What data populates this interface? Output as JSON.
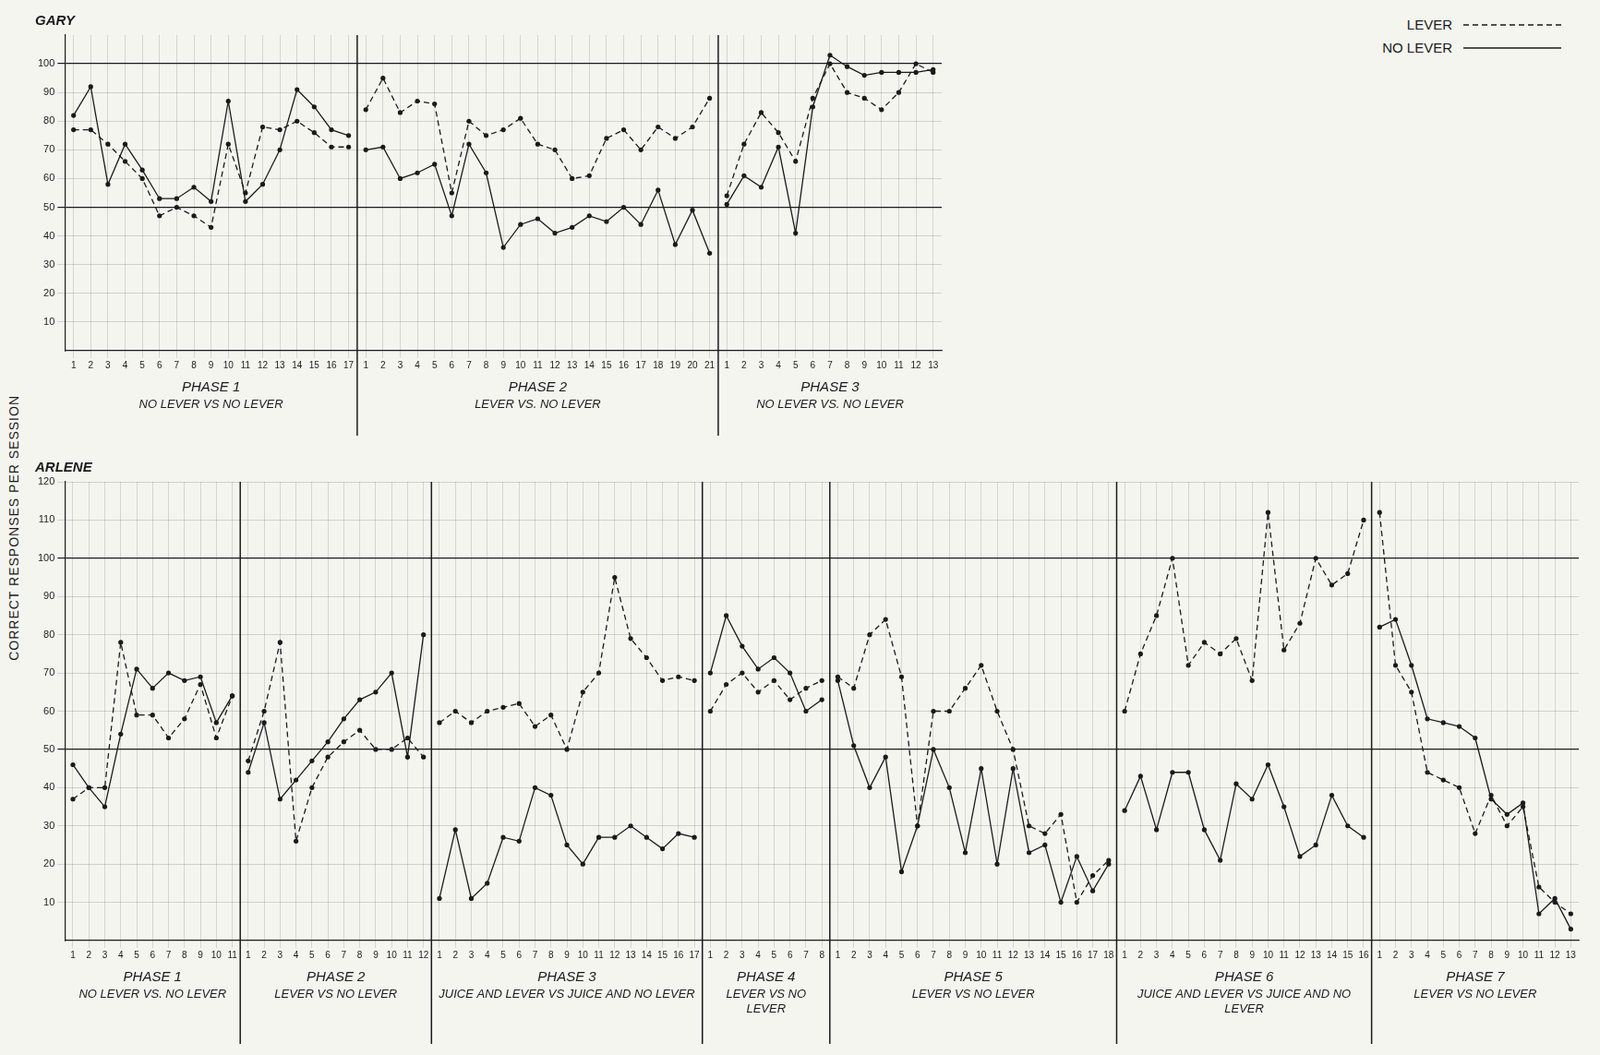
{
  "y_label": "CORRECT RESPONSES PER SESSION",
  "chart_data": [
    {
      "type": "line",
      "title": "GARY",
      "grid": true,
      "legend": "upper right",
      "ylim": [
        0,
        110
      ],
      "yticks": [
        10,
        20,
        30,
        40,
        50,
        60,
        70,
        80,
        90,
        100
      ],
      "categories": [
        1,
        2,
        3,
        4,
        5,
        6,
        7,
        8,
        9,
        10,
        11,
        12,
        13,
        14,
        15,
        16,
        17,
        1,
        2,
        3,
        4,
        5,
        6,
        7,
        8,
        9,
        10,
        11,
        12,
        13,
        14,
        15,
        16,
        17,
        18,
        19,
        20,
        21,
        1,
        2,
        3,
        4,
        5,
        6,
        7,
        8,
        9,
        10,
        11,
        12,
        13
      ],
      "phases": [
        {
          "name": "PHASE 1",
          "condition": "NO LEVER VS NO LEVER"
        },
        {
          "name": "PHASE 2",
          "condition": "LEVER VS. NO LEVER"
        },
        {
          "name": "PHASE 3",
          "condition": "NO LEVER VS. NO LEVER"
        }
      ],
      "series": [
        {
          "name": "LEVER",
          "color": "#1a1a1a",
          "line_style": "dashed",
          "marker": "circle",
          "values": [
            77,
            77,
            72,
            66,
            60,
            47,
            50,
            47,
            43,
            72,
            55,
            78,
            77,
            80,
            76,
            71,
            71,
            84,
            95,
            83,
            87,
            86,
            55,
            80,
            75,
            77,
            81,
            72,
            70,
            60,
            61,
            74,
            77,
            70,
            78,
            74,
            78,
            88,
            54,
            72,
            83,
            76,
            66,
            88,
            100,
            90,
            88,
            84,
            90,
            100,
            97
          ]
        },
        {
          "name": "NO LEVER",
          "color": "#1a1a1a",
          "line_style": "solid",
          "marker": "circle",
          "values": [
            82,
            92,
            58,
            72,
            63,
            53,
            53,
            57,
            52,
            87,
            52,
            58,
            70,
            91,
            85,
            77,
            75,
            70,
            71,
            60,
            62,
            65,
            47,
            72,
            62,
            36,
            44,
            46,
            41,
            43,
            47,
            45,
            50,
            44,
            56,
            37,
            49,
            34,
            51,
            61,
            57,
            71,
            41,
            85,
            103,
            99,
            96,
            97,
            97,
            97,
            98
          ]
        }
      ]
    },
    {
      "type": "line",
      "title": "ARLENE",
      "grid": true,
      "ylim": [
        0,
        120
      ],
      "yticks": [
        10,
        20,
        30,
        40,
        50,
        60,
        70,
        80,
        90,
        100,
        110,
        120
      ],
      "categories": [
        1,
        2,
        3,
        4,
        5,
        6,
        7,
        8,
        9,
        10,
        11,
        1,
        2,
        3,
        4,
        5,
        6,
        7,
        8,
        9,
        10,
        11,
        12,
        1,
        2,
        3,
        4,
        5,
        6,
        7,
        8,
        9,
        10,
        11,
        12,
        13,
        14,
        15,
        16,
        17,
        1,
        2,
        3,
        4,
        5,
        6,
        7,
        8,
        1,
        2,
        3,
        4,
        5,
        6,
        7,
        8,
        9,
        10,
        11,
        12,
        13,
        14,
        15,
        16,
        17,
        18,
        1,
        2,
        3,
        4,
        5,
        6,
        7,
        8,
        9,
        10,
        11,
        12,
        13,
        14,
        15,
        16,
        1,
        2,
        3,
        4,
        5,
        6,
        7,
        8,
        9,
        10,
        11,
        12,
        13
      ],
      "phases": [
        {
          "name": "PHASE 1",
          "condition": "NO LEVER VS. NO LEVER"
        },
        {
          "name": "PHASE 2",
          "condition": "LEVER VS NO LEVER"
        },
        {
          "name": "PHASE 3",
          "condition": "JUICE AND LEVER VS JUICE AND NO LEVER"
        },
        {
          "name": "PHASE 4",
          "condition": "LEVER VS NO LEVER"
        },
        {
          "name": "PHASE 5",
          "condition": "LEVER VS NO LEVER"
        },
        {
          "name": "PHASE 6",
          "condition": "JUICE AND LEVER VS JUICE AND NO LEVER"
        },
        {
          "name": "PHASE 7",
          "condition": "LEVER VS NO LEVER"
        }
      ],
      "series": [
        {
          "name": "LEVER",
          "color": "#1a1a1a",
          "line_style": "dashed",
          "marker": "circle",
          "values": [
            37,
            40,
            40,
            78,
            59,
            59,
            53,
            58,
            67,
            53,
            64,
            47,
            60,
            78,
            26,
            40,
            48,
            52,
            55,
            50,
            50,
            53,
            48,
            57,
            60,
            57,
            60,
            61,
            62,
            56,
            59,
            50,
            65,
            70,
            95,
            79,
            74,
            68,
            69,
            68,
            60,
            67,
            70,
            65,
            68,
            63,
            66,
            68,
            69,
            66,
            80,
            84,
            69,
            30,
            60,
            60,
            66,
            72,
            60,
            50,
            30,
            28,
            33,
            10,
            17,
            21,
            60,
            75,
            85,
            100,
            72,
            78,
            75,
            79,
            68,
            112,
            76,
            83,
            100,
            93,
            96,
            110,
            112,
            72,
            65,
            44,
            42,
            40,
            28,
            38,
            30,
            35,
            14,
            10,
            7
          ]
        },
        {
          "name": "NO LEVER",
          "color": "#1a1a1a",
          "line_style": "solid",
          "marker": "circle",
          "values": [
            46,
            40,
            35,
            54,
            71,
            66,
            70,
            68,
            69,
            57,
            64,
            44,
            57,
            37,
            42,
            47,
            52,
            58,
            63,
            65,
            70,
            48,
            80,
            11,
            29,
            11,
            15,
            27,
            26,
            40,
            38,
            25,
            20,
            27,
            27,
            30,
            27,
            24,
            28,
            27,
            70,
            85,
            77,
            71,
            74,
            70,
            60,
            63,
            68,
            51,
            40,
            48,
            18,
            30,
            50,
            40,
            23,
            45,
            20,
            45,
            23,
            25,
            10,
            22,
            13,
            20,
            34,
            43,
            29,
            44,
            44,
            29,
            21,
            41,
            37,
            46,
            35,
            22,
            25,
            38,
            30,
            27,
            82,
            84,
            72,
            58,
            57,
            56,
            53,
            37,
            33,
            36,
            7,
            11,
            3
          ]
        }
      ]
    }
  ]
}
